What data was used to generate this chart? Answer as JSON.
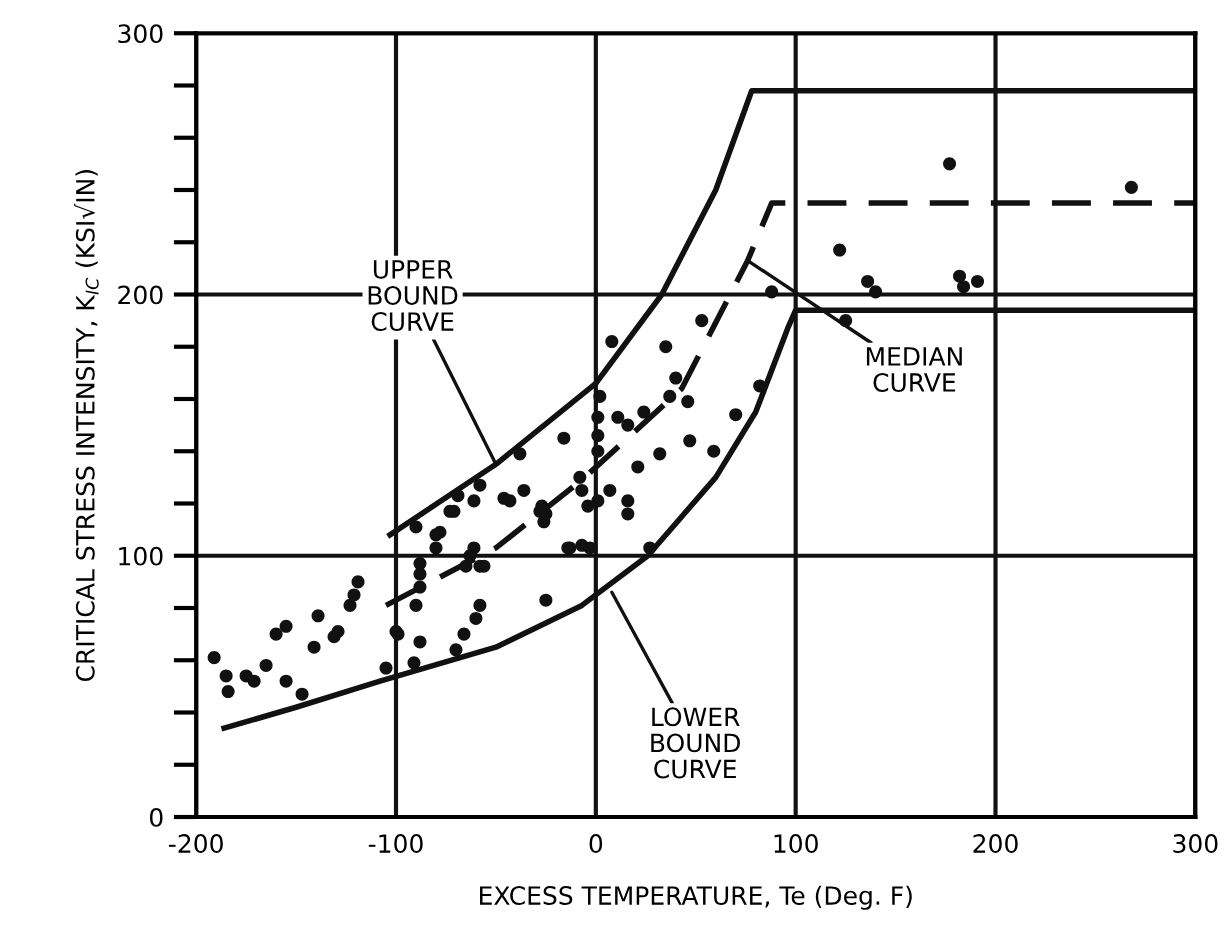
{
  "chart_data": {
    "type": "scatter",
    "xlabel": "EXCESS TEMPERATURE, Te (Deg. F)",
    "ylabel": "CRITICAL STRESS INTENSITY, K$_{IC}$ (KSI√IN)",
    "xlim": [
      -200,
      300
    ],
    "ylim": [
      0,
      300
    ],
    "xticks": [
      -200,
      -100,
      0,
      100,
      200,
      300
    ],
    "yticks": [
      0,
      {
        "value": 20,
        "label": null
      },
      {
        "value": 40,
        "label": null
      },
      {
        "value": 60,
        "label": null
      },
      {
        "value": 80,
        "label": null
      },
      100,
      {
        "value": 120,
        "label": null
      },
      {
        "value": 140,
        "label": null
      },
      {
        "value": 160,
        "label": null
      },
      {
        "value": 180,
        "label": null
      },
      200,
      {
        "value": 220,
        "label": null
      },
      {
        "value": 240,
        "label": null
      },
      {
        "value": 260,
        "label": null
      },
      {
        "value": 280,
        "label": null
      },
      300
    ],
    "grid": true,
    "legend": false,
    "series": [
      {
        "color": "#111111",
        "marker": "circle",
        "x": [
          -191,
          -185,
          -184,
          -175,
          -171,
          -165,
          -160,
          -155,
          -155,
          -147,
          -141,
          -139,
          -131,
          -129,
          -123,
          -121,
          -119,
          -105,
          -99,
          -91,
          -88,
          -70,
          -66,
          -60,
          -58,
          -25,
          -90,
          -80,
          -80,
          -88,
          -88,
          -90,
          -71,
          -61,
          -61,
          -58,
          -65,
          -14,
          -7,
          -25,
          -27,
          -43,
          -4,
          88,
          53,
          35,
          40,
          8,
          82,
          70,
          37,
          46,
          2,
          1,
          11,
          24,
          16,
          -16,
          1,
          1,
          47,
          59,
          32,
          -38,
          -58,
          -46,
          -36,
          -28,
          -26,
          -8,
          -7,
          1,
          7,
          16,
          16,
          21,
          27,
          -13,
          -3,
          -73,
          -69,
          -78,
          -63,
          -56,
          -88,
          -100,
          177,
          268,
          122,
          136,
          140,
          182,
          184,
          191,
          125
        ],
        "values": [
          61,
          54,
          48,
          54,
          52,
          58,
          70,
          73,
          52,
          47,
          65,
          77,
          69,
          71,
          81,
          85,
          90,
          57,
          70,
          59,
          67,
          64,
          70,
          76,
          81,
          83,
          111,
          108,
          103,
          97,
          88,
          81,
          117,
          121,
          103,
          96,
          96,
          103,
          104,
          116,
          119,
          121,
          119,
          201,
          190,
          180,
          168,
          182,
          165,
          154,
          161,
          159,
          161,
          153,
          153,
          155,
          150,
          145,
          146,
          140,
          144,
          140,
          139,
          139,
          127,
          122,
          125,
          117,
          113,
          130,
          125,
          121,
          125,
          121,
          116,
          134,
          103,
          103,
          103,
          117,
          123,
          109,
          100,
          96,
          93,
          71,
          250,
          241,
          217,
          205,
          201,
          207,
          203,
          205,
          190
        ]
      },
      {
        "type": "line",
        "color": "#111111",
        "line_style": "solid",
        "marker": "none",
        "x": [
          -103,
          -50,
          0,
          33,
          60,
          78,
          300
        ],
        "values": [
          108,
          135,
          166,
          200,
          240,
          278,
          278
        ]
      },
      {
        "type": "line",
        "color": "#111111",
        "line_style": "dashed",
        "marker": "none",
        "x": [
          -105,
          -50,
          -7,
          43,
          76,
          88,
          300
        ],
        "values": [
          81,
          103,
          129,
          164,
          213,
          235,
          235
        ]
      },
      {
        "type": "line",
        "color": "#111111",
        "line_style": "solid",
        "marker": "none",
        "x": [
          -186,
          -150,
          -108,
          -50,
          -7,
          26,
          60,
          80,
          96,
          100,
          300
        ],
        "values": [
          34,
          42,
          52,
          65,
          81,
          100,
          130,
          155,
          187,
          194,
          194
        ]
      }
    ],
    "annotations": [
      {
        "text": "UPPER\nBOUND\nCURVE",
        "x": -50,
        "y": 135
      },
      {
        "text": "MEDIAN\nCURVE",
        "x": 76,
        "y": 213
      },
      {
        "text": "LOWER\nBOUND\nCURVE",
        "x": 8,
        "y": 86
      }
    ]
  }
}
